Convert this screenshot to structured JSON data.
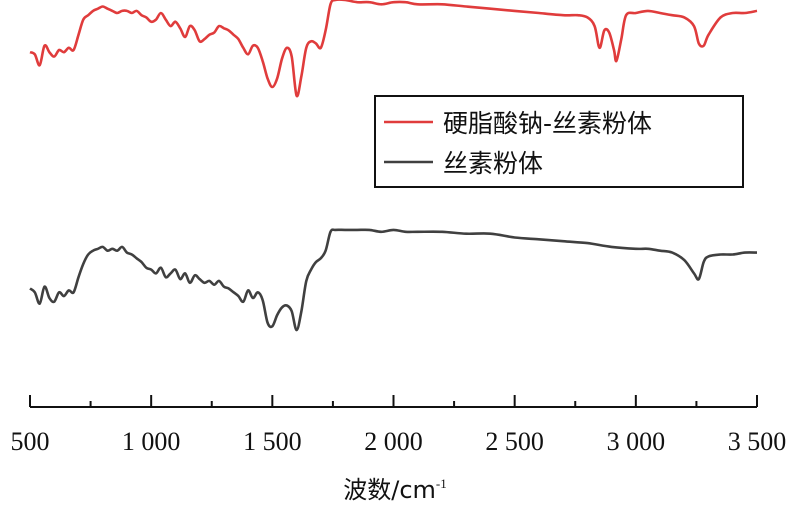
{
  "chart_data": {
    "type": "line",
    "xlabel": "波数/cm",
    "xlabel_superscript": "-1",
    "xlim": [
      500,
      3500
    ],
    "xticks": [
      500,
      1000,
      1500,
      2000,
      2500,
      3000,
      3500
    ],
    "xtick_labels": [
      "500",
      "1 000",
      "1 500",
      "2 000",
      "2 500",
      "3 000",
      "3 500"
    ],
    "y_axis_shown": false,
    "ylim": [
      0,
      1
    ],
    "grid": false,
    "legend_position": "center-right",
    "series": [
      {
        "name": "硬脂酸钠-丝素粉体",
        "color": "#e03c3c",
        "x": [
          500,
          520,
          540,
          560,
          580,
          600,
          620,
          640,
          660,
          680,
          700,
          720,
          740,
          760,
          780,
          800,
          820,
          840,
          860,
          880,
          900,
          920,
          940,
          960,
          980,
          1000,
          1020,
          1040,
          1060,
          1080,
          1100,
          1120,
          1140,
          1160,
          1180,
          1200,
          1220,
          1240,
          1260,
          1280,
          1300,
          1320,
          1340,
          1360,
          1380,
          1400,
          1420,
          1440,
          1460,
          1480,
          1500,
          1520,
          1540,
          1560,
          1580,
          1600,
          1620,
          1640,
          1660,
          1680,
          1700,
          1720,
          1740,
          1760,
          1800,
          1850,
          1900,
          1950,
          2000,
          2050,
          2100,
          2200,
          2300,
          2400,
          2500,
          2600,
          2700,
          2760,
          2800,
          2830,
          2850,
          2870,
          2890,
          2910,
          2920,
          2940,
          2960,
          3000,
          3050,
          3100,
          3150,
          3200,
          3240,
          3260,
          3280,
          3300,
          3350,
          3400,
          3450,
          3500
        ],
        "y": [
          0.78,
          0.77,
          0.72,
          0.81,
          0.78,
          0.76,
          0.79,
          0.78,
          0.8,
          0.79,
          0.86,
          0.93,
          0.95,
          0.97,
          0.98,
          0.99,
          0.98,
          0.97,
          0.96,
          0.97,
          0.97,
          0.96,
          0.97,
          0.95,
          0.94,
          0.92,
          0.93,
          0.96,
          0.93,
          0.9,
          0.92,
          0.89,
          0.85,
          0.9,
          0.88,
          0.83,
          0.84,
          0.86,
          0.87,
          0.9,
          0.89,
          0.88,
          0.86,
          0.84,
          0.8,
          0.77,
          0.81,
          0.8,
          0.74,
          0.66,
          0.62,
          0.66,
          0.75,
          0.8,
          0.76,
          0.58,
          0.67,
          0.8,
          0.83,
          0.82,
          0.8,
          0.88,
          1.0,
          1.02,
          1.02,
          1.01,
          1.01,
          1.0,
          1.01,
          1.01,
          1.0,
          1.0,
          0.99,
          0.98,
          0.97,
          0.96,
          0.95,
          0.95,
          0.94,
          0.9,
          0.8,
          0.88,
          0.87,
          0.79,
          0.74,
          0.84,
          0.95,
          0.96,
          0.97,
          0.96,
          0.95,
          0.94,
          0.9,
          0.82,
          0.81,
          0.86,
          0.94,
          0.96,
          0.96,
          0.97
        ]
      },
      {
        "name": "丝素粉体",
        "color": "#404040",
        "x": [
          500,
          520,
          540,
          560,
          580,
          600,
          620,
          640,
          660,
          680,
          700,
          720,
          740,
          760,
          780,
          800,
          820,
          840,
          860,
          880,
          900,
          920,
          940,
          960,
          980,
          1000,
          1020,
          1040,
          1060,
          1080,
          1100,
          1120,
          1140,
          1160,
          1180,
          1200,
          1220,
          1240,
          1260,
          1280,
          1300,
          1320,
          1340,
          1360,
          1380,
          1400,
          1420,
          1440,
          1460,
          1480,
          1500,
          1520,
          1540,
          1560,
          1580,
          1600,
          1620,
          1640,
          1660,
          1680,
          1700,
          1720,
          1740,
          1760,
          1800,
          1850,
          1900,
          1950,
          2000,
          2050,
          2100,
          2200,
          2300,
          2400,
          2500,
          2600,
          2700,
          2800,
          2900,
          3000,
          3050,
          3100,
          3150,
          3200,
          3240,
          3260,
          3280,
          3300,
          3350,
          3400,
          3450,
          3500
        ],
        "y": [
          0.42,
          0.4,
          0.34,
          0.43,
          0.37,
          0.35,
          0.4,
          0.38,
          0.41,
          0.4,
          0.48,
          0.55,
          0.6,
          0.62,
          0.63,
          0.64,
          0.62,
          0.63,
          0.62,
          0.64,
          0.61,
          0.6,
          0.58,
          0.56,
          0.53,
          0.52,
          0.5,
          0.53,
          0.48,
          0.5,
          0.52,
          0.47,
          0.5,
          0.45,
          0.49,
          0.47,
          0.45,
          0.46,
          0.44,
          0.46,
          0.43,
          0.42,
          0.4,
          0.38,
          0.35,
          0.41,
          0.37,
          0.4,
          0.36,
          0.24,
          0.22,
          0.28,
          0.32,
          0.33,
          0.3,
          0.2,
          0.3,
          0.46,
          0.52,
          0.56,
          0.58,
          0.62,
          0.72,
          0.73,
          0.73,
          0.73,
          0.73,
          0.72,
          0.73,
          0.72,
          0.72,
          0.72,
          0.71,
          0.71,
          0.69,
          0.68,
          0.67,
          0.66,
          0.64,
          0.63,
          0.63,
          0.62,
          0.61,
          0.57,
          0.5,
          0.47,
          0.56,
          0.59,
          0.6,
          0.6,
          0.61,
          0.61
        ]
      }
    ]
  }
}
